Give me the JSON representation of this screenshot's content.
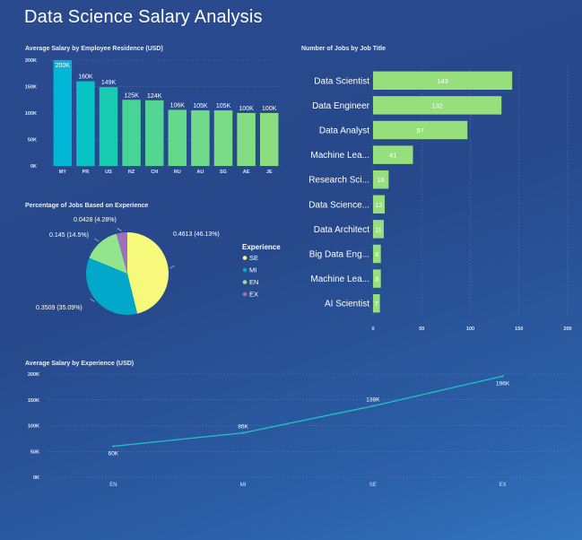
{
  "page": {
    "title": "Data Science Salary Analysis"
  },
  "colors": {
    "background": "#2a4a8f",
    "bar_gradient": [
      "#00b5d9",
      "#19c9b7",
      "#6fdb8b"
    ],
    "job_bar": "#95e07c",
    "line": "#1fbfbf",
    "pie": {
      "SE": "#f6f97a",
      "MI": "#01a8c9",
      "EN": "#93e58d",
      "EX": "#9e6fbe"
    }
  },
  "chart_data": [
    {
      "id": "residence",
      "type": "bar",
      "title": "Average Salary by Employee Residence (USD)",
      "categories": [
        "MY",
        "PR",
        "US",
        "NZ",
        "CH",
        "RU",
        "AU",
        "SG",
        "AE",
        "JE"
      ],
      "values": [
        200000,
        160000,
        149000,
        125000,
        124000,
        106000,
        105000,
        105000,
        100000,
        100000
      ],
      "data_labels": [
        "200K",
        "160K",
        "149K",
        "125K",
        "124K",
        "106K",
        "105K",
        "105K",
        "100K",
        "100K"
      ],
      "yticks": [
        "200K",
        "150K",
        "100K",
        "50K",
        "0K"
      ],
      "ylim": [
        0,
        200000
      ],
      "grid": true
    },
    {
      "id": "jobs",
      "type": "bar",
      "orientation": "horizontal",
      "title": "Number of Jobs by Job Title",
      "categories": [
        "Data Scientist",
        "Data Engineer",
        "Data Analyst",
        "Machine Lea...",
        "Research Sci...",
        "Data Science...",
        "Data Architect",
        "Big Data Eng...",
        "Machine Lea...",
        "AI Scientist"
      ],
      "values": [
        143,
        132,
        97,
        41,
        16,
        12,
        11,
        8,
        8,
        7
      ],
      "xticks": [
        "0",
        "50",
        "100",
        "150",
        "200"
      ],
      "xlim": [
        0,
        200
      ],
      "grid": true
    },
    {
      "id": "experience_share",
      "type": "pie",
      "title": "Percentage of Jobs Based on Experience",
      "legend_title": "Experience",
      "legend_position": "right",
      "slices": [
        {
          "name": "SE",
          "value": 0.4613,
          "label": "0.4613 (46.13%)"
        },
        {
          "name": "MI",
          "value": 0.3509,
          "label": "0.3509 (35.09%)"
        },
        {
          "name": "EN",
          "value": 0.145,
          "label": "0.145 (14.5%)"
        },
        {
          "name": "EX",
          "value": 0.0428,
          "label": "0.0428 (4.28%)"
        }
      ]
    },
    {
      "id": "experience_salary",
      "type": "line",
      "title": "Average Salary by Experience (USD)",
      "categories": [
        "EN",
        "MI",
        "SE",
        "EX"
      ],
      "values": [
        60000,
        86000,
        138000,
        196000
      ],
      "data_labels": [
        "60K",
        "86K",
        "138K",
        "196K"
      ],
      "yticks": [
        "200K",
        "150K",
        "100K",
        "50K",
        "0K"
      ],
      "ylim": [
        0,
        200000
      ],
      "grid": true
    }
  ]
}
